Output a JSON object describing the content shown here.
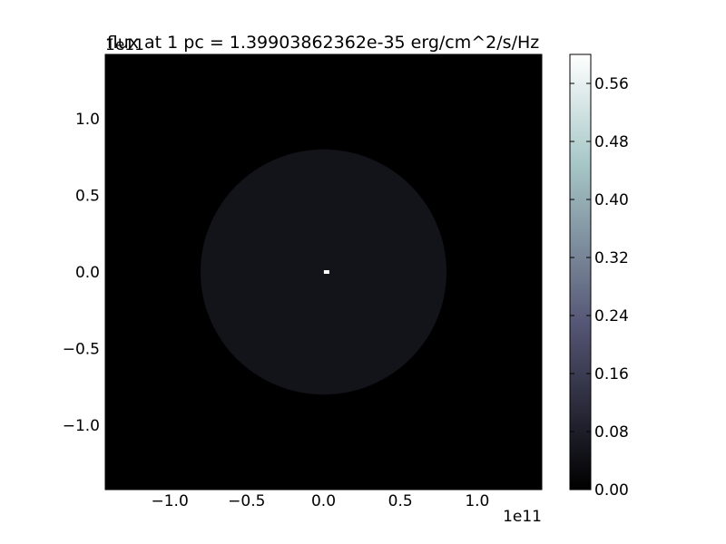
{
  "chart_data": {
    "type": "heatmap",
    "title": "flux at 1 pc = 1.39903862362e-35 erg/cm^2/s/Hz",
    "x_offset_text": "1e11",
    "y_offset_text": "1e11",
    "xlim": [
      -1.42,
      1.42
    ],
    "ylim": [
      -1.42,
      1.42
    ],
    "x_ticks": [
      {
        "value": -1.0,
        "label": "−1.0"
      },
      {
        "value": -0.5,
        "label": "−0.5"
      },
      {
        "value": 0.0,
        "label": "0.0"
      },
      {
        "value": 0.5,
        "label": "0.5"
      },
      {
        "value": 1.0,
        "label": "1.0"
      }
    ],
    "y_ticks": [
      {
        "value": 1.0,
        "label": "1.0"
      },
      {
        "value": 0.5,
        "label": "0.5"
      },
      {
        "value": 0.0,
        "label": "0.0"
      },
      {
        "value": -0.5,
        "label": "−0.5"
      },
      {
        "value": -1.0,
        "label": "−1.0"
      }
    ],
    "colormap": "bone",
    "colorbar": {
      "range": [
        0.0,
        0.6
      ],
      "ticks": [
        {
          "value": 0.56,
          "label": "0.56"
        },
        {
          "value": 0.48,
          "label": "0.48"
        },
        {
          "value": 0.4,
          "label": "0.40"
        },
        {
          "value": 0.32,
          "label": "0.32"
        },
        {
          "value": 0.24,
          "label": "0.24"
        },
        {
          "value": 0.16,
          "label": "0.16"
        },
        {
          "value": 0.08,
          "label": "0.08"
        },
        {
          "value": 0.0,
          "label": "0.00"
        }
      ]
    },
    "disk": {
      "center": [
        0.0,
        0.0
      ],
      "radius": 0.8,
      "value": 0.05
    },
    "peak": {
      "x": 0.02,
      "y": 0.0,
      "value": 0.6
    },
    "background_value": 0.0
  }
}
